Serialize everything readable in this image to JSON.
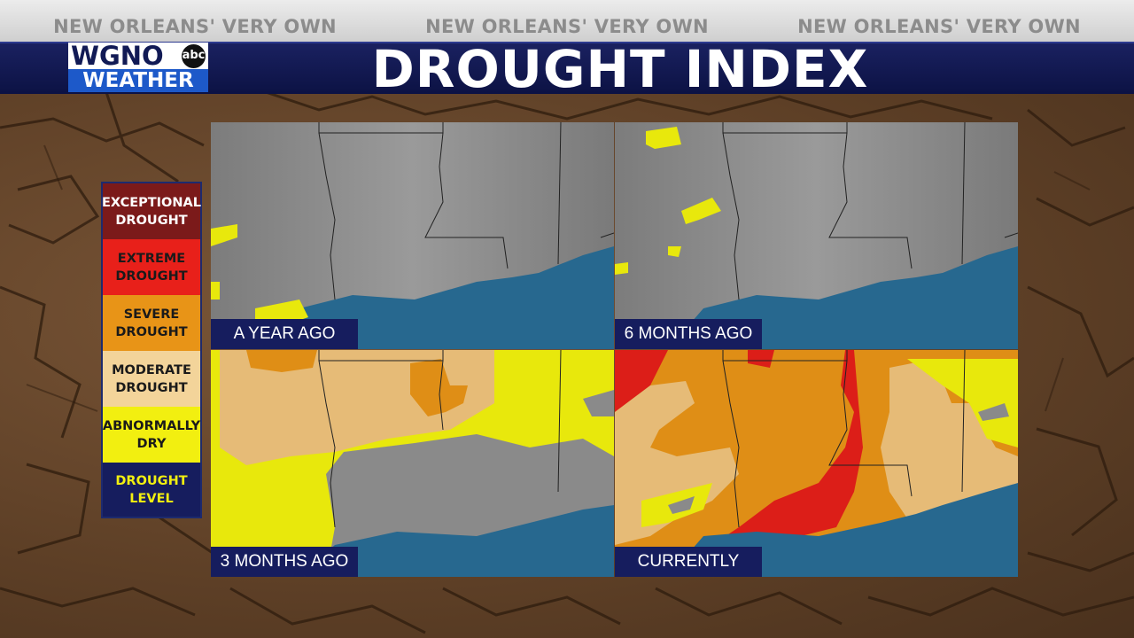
{
  "header": {
    "taglines": [
      "NEW ORLEANS' VERY OWN",
      "NEW ORLEANS' VERY OWN",
      "NEW ORLEANS' VERY OWN"
    ],
    "title": "DROUGHT INDEX"
  },
  "logo": {
    "station": "WGNO",
    "network": "abc",
    "subtitle": "WEATHER"
  },
  "legend": {
    "items": [
      {
        "label_line1": "EXCEPTIONAL",
        "label_line2": "DROUGHT",
        "color": "#7b1a1a",
        "text_color": "#ffffff"
      },
      {
        "label_line1": "EXTREME",
        "label_line2": "DROUGHT",
        "color": "#e8201a",
        "text_color": "#1a1a1a"
      },
      {
        "label_line1": "SEVERE",
        "label_line2": "DROUGHT",
        "color": "#e89417",
        "text_color": "#1a1a1a"
      },
      {
        "label_line1": "MODERATE",
        "label_line2": "DROUGHT",
        "color": "#f3d49a",
        "text_color": "#1a1a1a"
      },
      {
        "label_line1": "ABNORMALLY",
        "label_line2": "DRY",
        "color": "#f2ef10",
        "text_color": "#1a1a1a"
      },
      {
        "label_line1": "DROUGHT",
        "label_line2": "LEVEL",
        "color": "#161d5e",
        "text_color": "#f2ef10"
      }
    ]
  },
  "panels": [
    {
      "label": "A YEAR AGO"
    },
    {
      "label": "6 MONTHS AGO"
    },
    {
      "label": "3 MONTHS AGO"
    },
    {
      "label": "CURRENTLY"
    }
  ],
  "colors": {
    "land": "#8a8a8a",
    "water": "#27688f",
    "abnormally_dry": "#e8e80c",
    "moderate": "#e6bb77",
    "severe": "#df8e16",
    "extreme": "#dc1e18"
  }
}
